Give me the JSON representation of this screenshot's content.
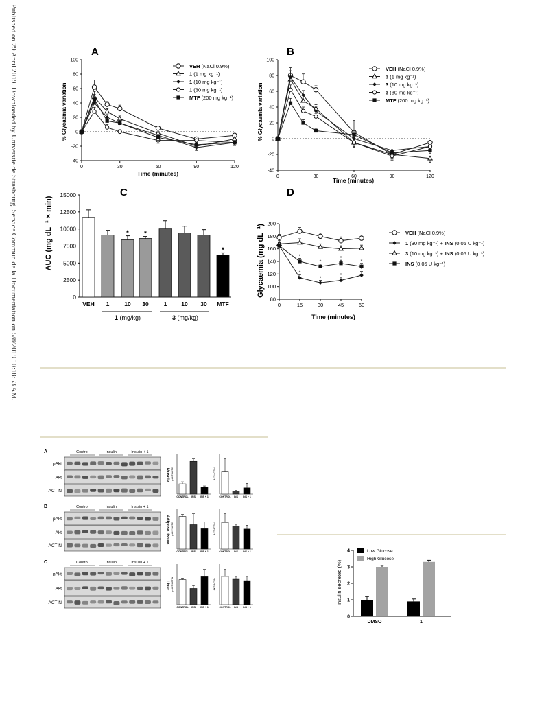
{
  "sidebar": "Published on 29 April 2019. Downloaded by Université de Strasbourg. Service Commun de la Documentation on 5/8/2019 10:18:53 AM.",
  "figure": {
    "panel_a": {
      "letter": "A",
      "ylabel": "% Glycaemia variation",
      "xlabel": "Time (minutes)",
      "yticks": [
        "100",
        "80",
        "60",
        "40",
        "20",
        "0",
        "-20",
        "-40"
      ],
      "xticks": [
        "0",
        "30",
        "60",
        "90",
        "120"
      ],
      "legend": [
        {
          "bold": "VEH",
          "rest": " (NaCl 0.9%)"
        },
        {
          "bold": "1",
          "rest": " (1 mg kg⁻¹)"
        },
        {
          "bold": "1",
          "rest": " (10 mg kg⁻¹)"
        },
        {
          "bold": "1",
          "rest": " (30 mg kg⁻¹)"
        },
        {
          "bold": "MTF",
          "rest": " (200 mg kg⁻¹)"
        }
      ]
    },
    "panel_b": {
      "letter": "B",
      "ylabel": "% Glycaemia variation",
      "xlabel": "Time (minutes)",
      "yticks": [
        "100",
        "80",
        "60",
        "40",
        "20",
        "0",
        "-20",
        "-40"
      ],
      "xticks": [
        "0",
        "30",
        "60",
        "90",
        "120"
      ],
      "legend": [
        {
          "bold": "VEH",
          "rest": " (NaCl 0.9%)"
        },
        {
          "bold": "3",
          "rest": " (1 mg kg⁻¹)"
        },
        {
          "bold": "3",
          "rest": " (10 mg kg⁻¹)"
        },
        {
          "bold": "3",
          "rest": " (30 mg kg⁻¹)"
        },
        {
          "bold": "MTF",
          "rest": " (200 mg kg⁻¹)"
        }
      ]
    },
    "panel_c": {
      "letter": "C",
      "ylabel": "AUC  (mg dL⁻¹ × min)",
      "yticks": [
        "15000",
        "12500",
        "10000",
        "7500",
        "5000",
        "2500",
        "0"
      ],
      "xticks": [
        "VEH",
        "1",
        "10",
        "30",
        "1",
        "10",
        "30",
        "MTF"
      ],
      "group1": "1 (mg/kg)",
      "group2": "3 (mg/kg)",
      "star": "*"
    },
    "panel_d": {
      "letter": "D",
      "ylabel": "Glycaemia  (mg dL⁻¹)",
      "xlabel": "Time (minutes)",
      "yticks": [
        "200",
        "180",
        "160",
        "140",
        "120",
        "100",
        "80"
      ],
      "xticks": [
        "0",
        "15",
        "30",
        "45",
        "60"
      ],
      "legend": [
        {
          "bold": "VEH",
          "rest": " (NaCl 0.9%)"
        },
        {
          "bold": "1",
          "rest": " (30 mg kg⁻¹) + ",
          "bold2": "INS",
          "rest2": " (0.05 U kg⁻¹)"
        },
        {
          "bold": "3",
          "rest": " (10 mg kg⁻¹) + ",
          "bold2": "INS",
          "rest2": " (0.05 U kg⁻¹)"
        },
        {
          "bold": "INS",
          "rest": " (0.05 U kg⁻¹)"
        }
      ]
    },
    "blots": {
      "groups": [
        "Control",
        "Insulin",
        "Insulin + 1"
      ],
      "sections": [
        {
          "letter": "A",
          "tissue": "Muscle",
          "rows": [
            "pAkt",
            "Akt",
            "ACTIN"
          ]
        },
        {
          "letter": "B",
          "tissue": "Adipose tissue",
          "rows": [
            "pAkt",
            "Akt",
            "ACTIN"
          ]
        },
        {
          "letter": "C",
          "tissue": "Liver",
          "rows": [
            "pAkt",
            "Akt",
            "ACTIN"
          ]
        }
      ],
      "bar_xlabels": [
        "CONTROL",
        "INS",
        "INS + 1"
      ],
      "bar_ylabel_left": "p-AKT/ACTIN",
      "bar_ylabel_right": "AKT/ACTIN"
    },
    "insulin": {
      "ylabel": "Insulin secreted (%)",
      "yticks": [
        "4",
        "3",
        "2",
        "1",
        "0"
      ],
      "xticks": [
        "DMSO",
        "1"
      ],
      "legend": [
        "Low Glucose",
        "High Glucose"
      ]
    }
  },
  "chart_data": [
    {
      "type": "line",
      "title": "A",
      "xlabel": "Time (minutes)",
      "ylabel": "% Glycaemia variation",
      "x": [
        0,
        10,
        20,
        30,
        60,
        90,
        120
      ],
      "ylim": [
        -40,
        100
      ],
      "xlim": [
        0,
        120
      ],
      "series": [
        {
          "name": "VEH (NaCl 0.9%)",
          "marker": "open-circle",
          "values": [
            0,
            62,
            38,
            32,
            5,
            -10,
            -5
          ],
          "err": [
            0,
            10,
            4,
            5,
            6,
            5,
            5
          ]
        },
        {
          "name": "1 (1 mg kg-1)",
          "marker": "open-triangle",
          "values": [
            0,
            48,
            28,
            18,
            -2,
            -20,
            -10
          ],
          "err": [
            0,
            8,
            4,
            4,
            5,
            5,
            4
          ]
        },
        {
          "name": "1 (10 mg kg-1)",
          "marker": "filled-diamond",
          "values": [
            0,
            40,
            20,
            12,
            -5,
            -22,
            -15
          ],
          "err": [
            0,
            6,
            4,
            4,
            5,
            4,
            4
          ]
        },
        {
          "name": "1 (30 mg kg-1)",
          "marker": "open-circle-small",
          "values": [
            0,
            28,
            6,
            0,
            -12,
            -12,
            -15
          ],
          "err": [
            0,
            6,
            4,
            3,
            4,
            4,
            4
          ]
        },
        {
          "name": "MTF (200 mg kg-1)",
          "marker": "filled-square",
          "values": [
            0,
            45,
            15,
            12,
            -8,
            -18,
            -15
          ],
          "err": [
            0,
            7,
            4,
            4,
            4,
            4,
            4
          ]
        }
      ]
    },
    {
      "type": "line",
      "title": "B",
      "xlabel": "Time (minutes)",
      "ylabel": "% Glycaemia variation",
      "x": [
        0,
        10,
        20,
        30,
        60,
        90,
        120
      ],
      "ylim": [
        -40,
        100
      ],
      "xlim": [
        0,
        120
      ],
      "series": [
        {
          "name": "VEH (NaCl 0.9%)",
          "marker": "open-circle",
          "values": [
            0,
            80,
            72,
            62,
            8,
            -20,
            -5
          ],
          "err": [
            0,
            10,
            10,
            5,
            15,
            8,
            5
          ]
        },
        {
          "name": "3 (1 mg kg-1)",
          "marker": "open-triangle",
          "values": [
            0,
            75,
            48,
            38,
            -5,
            -20,
            -25
          ],
          "err": [
            0,
            8,
            8,
            5,
            6,
            5,
            5
          ]
        },
        {
          "name": "3 (10 mg kg-1)",
          "marker": "filled-diamond",
          "values": [
            0,
            78,
            55,
            35,
            0,
            -15,
            -10
          ],
          "err": [
            0,
            8,
            6,
            5,
            6,
            5,
            5
          ]
        },
        {
          "name": "3 (30 mg kg-1)",
          "marker": "open-circle-small",
          "values": [
            0,
            62,
            35,
            28,
            -5,
            -22,
            -10
          ],
          "err": [
            0,
            6,
            5,
            4,
            5,
            5,
            4
          ]
        },
        {
          "name": "MTF (200 mg kg-1)",
          "marker": "filled-square",
          "values": [
            0,
            45,
            20,
            10,
            5,
            -18,
            -15
          ],
          "err": [
            0,
            6,
            4,
            3,
            5,
            4,
            4
          ]
        }
      ]
    },
    {
      "type": "bar",
      "title": "C",
      "ylabel": "AUC (mg dL-1 × min)",
      "categories": [
        "VEH",
        "1",
        "10",
        "30",
        "1",
        "10",
        "30",
        "MTF"
      ],
      "values": [
        11700,
        9100,
        8400,
        8600,
        10100,
        9400,
        9100,
        6200
      ],
      "err": [
        1100,
        700,
        600,
        300,
        1100,
        1000,
        800,
        300
      ],
      "significant": [
        false,
        false,
        true,
        true,
        false,
        false,
        false,
        true
      ],
      "colors": [
        "#ffffff",
        "#9a9a9a",
        "#9a9a9a",
        "#9a9a9a",
        "#5a5a5a",
        "#5a5a5a",
        "#5a5a5a",
        "#000000"
      ],
      "ylim": [
        0,
        15000
      ]
    },
    {
      "type": "line",
      "title": "D",
      "xlabel": "Time (minutes)",
      "ylabel": "Glycaemia (mg dL-1)",
      "x": [
        0,
        15,
        30,
        45,
        60
      ],
      "ylim": [
        80,
        200
      ],
      "xlim": [
        0,
        60
      ],
      "series": [
        {
          "name": "VEH (NaCl 0.9%)",
          "marker": "open-circle",
          "values": [
            178,
            188,
            180,
            173,
            177
          ],
          "err": [
            5,
            6,
            5,
            6,
            5
          ]
        },
        {
          "name": "1 (30 mg kg-1) + INS (0.05 U kg-1)",
          "marker": "filled-diamond",
          "values": [
            165,
            114,
            106,
            110,
            118
          ],
          "err": [
            5,
            5,
            4,
            5,
            6
          ]
        },
        {
          "name": "3 (10 mg kg-1) + INS (0.05 U kg-1)",
          "marker": "open-triangle",
          "values": [
            168,
            170,
            163,
            160,
            161
          ],
          "err": [
            5,
            6,
            5,
            5,
            5
          ]
        },
        {
          "name": "INS (0.05 U kg-1)",
          "marker": "filled-square",
          "values": [
            165,
            140,
            132,
            137,
            132
          ],
          "err": [
            5,
            5,
            4,
            5,
            5
          ]
        }
      ]
    },
    {
      "type": "bar",
      "title": "Muscle",
      "categories": [
        "CONTROL",
        "INS",
        "INS + 1"
      ],
      "series": [
        {
          "name": "p-AKT/ACTIN",
          "values": [
            0.25,
            0.8,
            0.17
          ],
          "err": [
            0.05,
            0.06,
            0.03
          ]
        },
        {
          "name": "AKT/ACTIN",
          "values": [
            0.6,
            0.08,
            0.17
          ],
          "err": [
            0.35,
            0.02,
            0.12
          ]
        }
      ]
    },
    {
      "type": "bar",
      "title": "Adipose tissue",
      "categories": [
        "CONTROL",
        "INS",
        "INS + 1"
      ],
      "series": [
        {
          "name": "p-AKT/ACTIN",
          "values": [
            1.2,
            0.9,
            0.75
          ],
          "err": [
            0.08,
            0.4,
            0.25
          ]
        },
        {
          "name": "AKT/ACTIN",
          "values": [
            1.4,
            1.2,
            1.05
          ],
          "err": [
            0.45,
            0.1,
            0.2
          ]
        }
      ]
    },
    {
      "type": "bar",
      "title": "Liver",
      "categories": [
        "CONTROL",
        "INS",
        "INS + 1"
      ],
      "series": [
        {
          "name": "p-AKT/ACTIN",
          "values": [
            0.85,
            0.55,
            0.95
          ],
          "err": [
            0.03,
            0.1,
            0.25
          ]
        },
        {
          "name": "AKT/ACTIN",
          "values": [
            1.0,
            0.9,
            0.85
          ],
          "err": [
            0.25,
            0.1,
            0.15
          ]
        }
      ]
    },
    {
      "type": "bar",
      "title": "",
      "ylabel": "Insulin secreted (%)",
      "categories": [
        "DMSO",
        "1"
      ],
      "series": [
        {
          "name": "Low Glucose",
          "values": [
            1.0,
            0.9
          ],
          "err": [
            0.2,
            0.15
          ]
        },
        {
          "name": "High Glucose",
          "values": [
            3.0,
            3.3
          ],
          "err": [
            0.1,
            0.1
          ]
        }
      ],
      "ylim": [
        0,
        4
      ]
    }
  ]
}
